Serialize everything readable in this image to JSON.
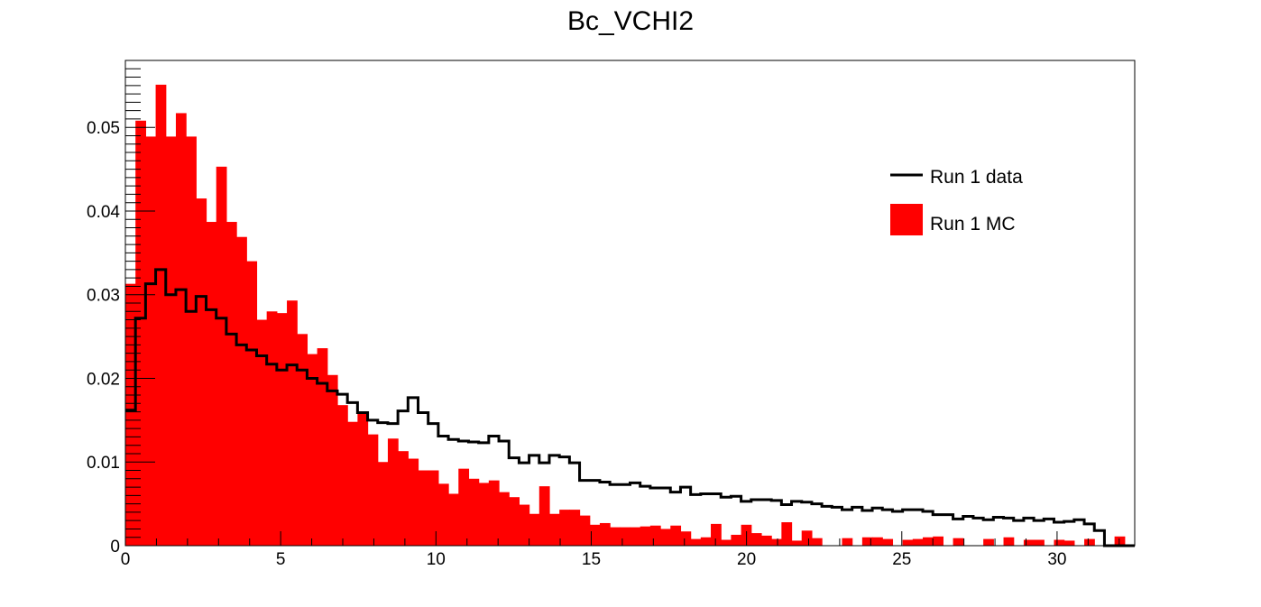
{
  "chart_data": {
    "type": "bar",
    "title": "Bc_VCHI2",
    "xlabel": "",
    "ylabel": "",
    "xlim": [
      0,
      32.5
    ],
    "ylim": [
      0,
      0.058
    ],
    "grid": false,
    "legend_position": "top-right",
    "bin_edges": {
      "start": 0,
      "width": 0.325,
      "count": 100
    },
    "x_ticks": [
      0,
      5,
      10,
      15,
      20,
      25,
      30
    ],
    "x_tick_labels": [
      "0",
      "5",
      "10",
      "15",
      "20",
      "25",
      "30"
    ],
    "y_ticks": [
      0,
      0.01,
      0.02,
      0.03,
      0.04,
      0.05
    ],
    "y_tick_labels": [
      "0",
      "0.01",
      "0.02",
      "0.03",
      "0.04",
      "0.05"
    ],
    "series": [
      {
        "name": "Run 1 MC",
        "style": "filled",
        "color": "#ff0000",
        "values": [
          0.0313,
          0.0508,
          0.0489,
          0.0551,
          0.0489,
          0.0517,
          0.0489,
          0.0415,
          0.0387,
          0.0453,
          0.0387,
          0.0369,
          0.034,
          0.027,
          0.028,
          0.0278,
          0.0293,
          0.0253,
          0.0229,
          0.0236,
          0.0204,
          0.0168,
          0.0148,
          0.0158,
          0.0133,
          0.01,
          0.0128,
          0.0113,
          0.0104,
          0.009,
          0.009,
          0.0074,
          0.0062,
          0.0092,
          0.008,
          0.0075,
          0.0078,
          0.0064,
          0.0058,
          0.0049,
          0.0038,
          0.0071,
          0.0038,
          0.0043,
          0.0043,
          0.0036,
          0.0025,
          0.0027,
          0.0022,
          0.0022,
          0.0022,
          0.0023,
          0.0024,
          0.002,
          0.0024,
          0.0017,
          0.0008,
          0.001,
          0.0026,
          0.0007,
          0.0013,
          0.0025,
          0.0015,
          0.0012,
          0.0008,
          0.0028,
          0.0006,
          0.0018,
          0.0009,
          0.0,
          0.0,
          0.0009,
          0.0,
          0.001,
          0.001,
          0.0008,
          0.0,
          0.0007,
          0.0008,
          0.001,
          0.0011,
          0.0,
          0.0009,
          0.0,
          0.0,
          0.0008,
          0.0,
          0.001,
          0.0,
          0.0007,
          0.0007,
          0.0,
          0.0007,
          0.0006,
          0.0,
          0.0008,
          0.0,
          0.0,
          0.0011,
          0.0
        ]
      },
      {
        "name": "Run 1 data",
        "style": "step",
        "color": "#000000",
        "values": [
          0.0162,
          0.0272,
          0.0313,
          0.033,
          0.03,
          0.0306,
          0.028,
          0.0298,
          0.0282,
          0.0272,
          0.0253,
          0.024,
          0.0234,
          0.0227,
          0.0217,
          0.021,
          0.0216,
          0.021,
          0.02,
          0.0194,
          0.0185,
          0.0181,
          0.0171,
          0.0159,
          0.015,
          0.0147,
          0.0146,
          0.0161,
          0.0177,
          0.0159,
          0.0146,
          0.0131,
          0.0127,
          0.0125,
          0.0124,
          0.0123,
          0.0131,
          0.0125,
          0.0105,
          0.0099,
          0.0108,
          0.0099,
          0.0108,
          0.0106,
          0.0099,
          0.0078,
          0.0078,
          0.0076,
          0.0073,
          0.0073,
          0.0075,
          0.0071,
          0.0069,
          0.0069,
          0.0064,
          0.007,
          0.0061,
          0.0062,
          0.0062,
          0.0058,
          0.0059,
          0.0053,
          0.0055,
          0.0055,
          0.0054,
          0.0049,
          0.0053,
          0.0052,
          0.005,
          0.0047,
          0.0046,
          0.0043,
          0.0046,
          0.0042,
          0.0045,
          0.0043,
          0.0041,
          0.0043,
          0.0043,
          0.0041,
          0.0037,
          0.0037,
          0.0032,
          0.0035,
          0.0033,
          0.0031,
          0.0034,
          0.0033,
          0.003,
          0.0033,
          0.003,
          0.0032,
          0.0028,
          0.0029,
          0.0031,
          0.0026,
          0.0018,
          0.0,
          0.0,
          0.0
        ]
      }
    ]
  }
}
